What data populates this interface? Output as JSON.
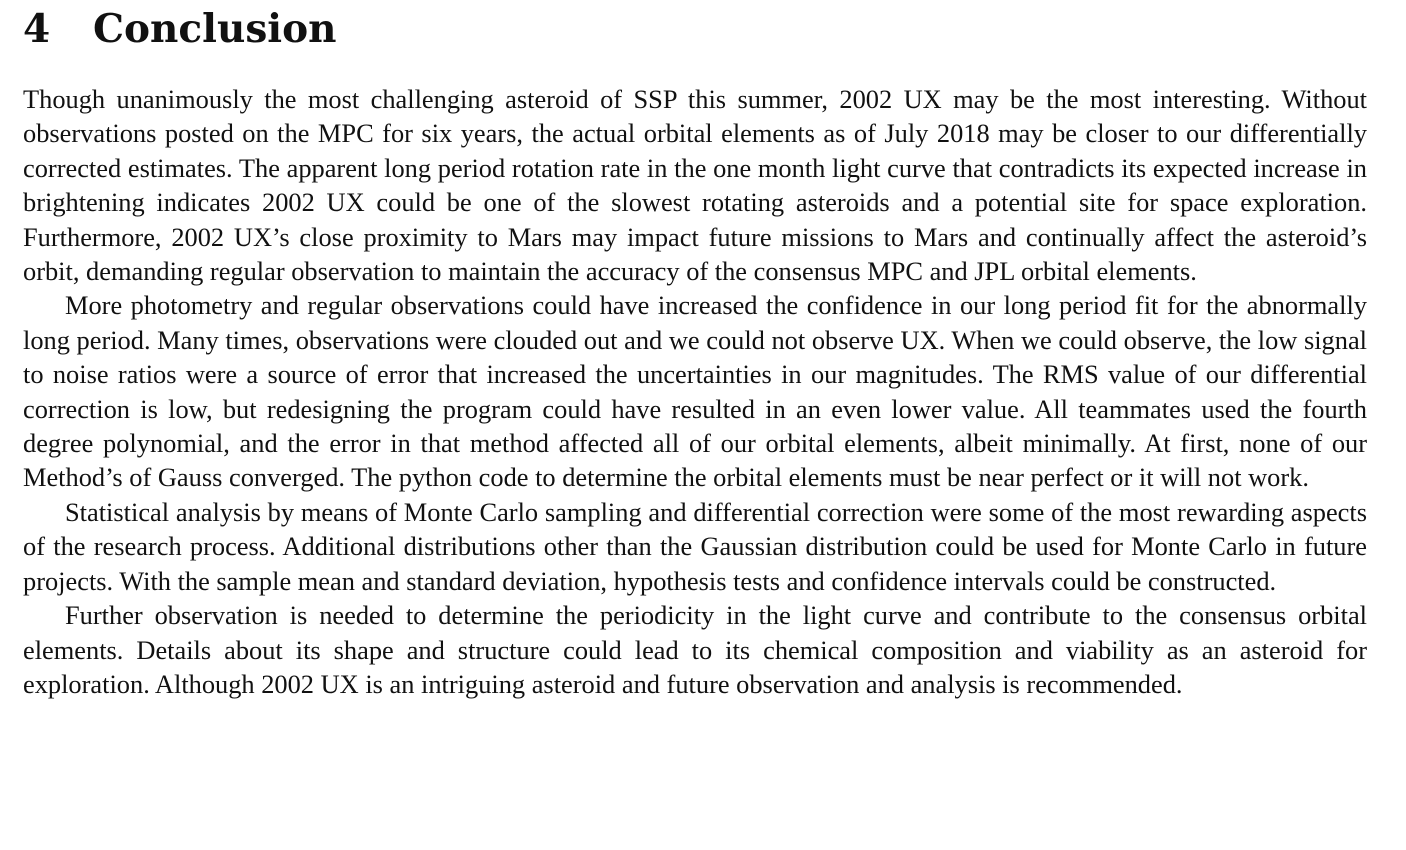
{
  "section": {
    "number": "4",
    "title": "Conclusion"
  },
  "paragraphs": [
    {
      "text": "Though unanimously the most challenging asteroid of SSP this summer, 2002 UX may be the most interesting. Without observations posted on the MPC for six years, the actual orbital elements as of July 2018 may be closer to our differentially corrected estimates. The apparent long period rotation rate in the one month light curve that contradicts its expected increase in brightening indicates 2002 UX could be one of the slowest rotating asteroids and a potential site for space exploration. Furthermore, 2002 UX’s close proximity to Mars may impact future missions to Mars and continually affect the asteroid’s orbit, demanding regular observation to maintain the accuracy of the consensus MPC and JPL orbital elements."
    },
    {
      "text": "More photometry and regular observations could have increased the confidence in our long period fit for the abnormally long period. Many times, observations were clouded out and we could not observe UX. When we could observe, the low signal to noise ratios were a source of error that increased the uncertainties in our magnitudes. The RMS value of our differential correction is low, but redesigning the program could have resulted in an even lower value. All teammates used the fourth degree polynomial, and the error in that method affected all of our orbital elements, albeit minimally. At first, none of our Method’s of Gauss converged. The python code to determine the orbital elements must be near perfect or it will not work."
    },
    {
      "text": "Statistical analysis by means of Monte Carlo sampling and differential correction were some of the most rewarding aspects of the research process. Additional distributions other than the Gaussian distribution could be used for Monte Carlo in future projects. With the sample mean and standard deviation, hypothesis tests and confidence intervals could be constructed."
    },
    {
      "text": "Further observation is needed to determine the periodicity in the light curve and contribute to the consensus orbital elements. Details about its shape and structure could lead to its chemical composition and viability as an asteroid for exploration. Although 2002 UX is an intriguing asteroid and future observation and analysis is recommended."
    }
  ]
}
